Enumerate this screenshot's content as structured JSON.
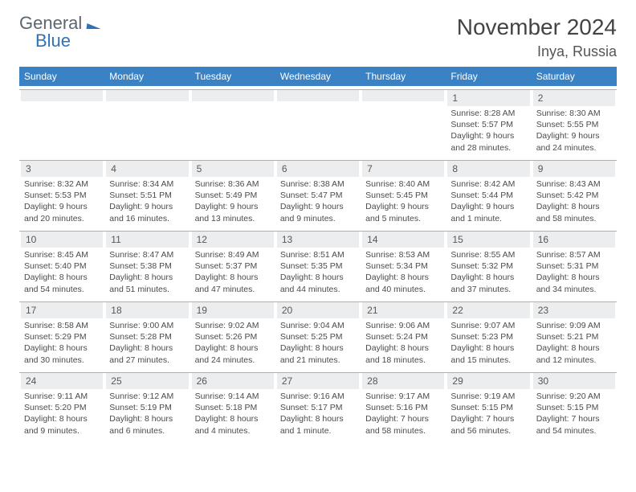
{
  "logo": {
    "text1": "General",
    "text2": "Blue"
  },
  "header": {
    "month_title": "November 2024",
    "location": "Inya, Russia"
  },
  "weekdays": [
    "Sunday",
    "Monday",
    "Tuesday",
    "Wednesday",
    "Thursday",
    "Friday",
    "Saturday"
  ],
  "colors": {
    "header_bg": "#3b82c4",
    "header_text": "#ffffff",
    "daynum_bg": "#ecedee",
    "border": "#a8b2bb",
    "logo_gray": "#5b6770",
    "logo_blue": "#2f72b8"
  },
  "days": [
    {
      "n": "",
      "sr": "",
      "ss": "",
      "dl1": "",
      "dl2": ""
    },
    {
      "n": "",
      "sr": "",
      "ss": "",
      "dl1": "",
      "dl2": ""
    },
    {
      "n": "",
      "sr": "",
      "ss": "",
      "dl1": "",
      "dl2": ""
    },
    {
      "n": "",
      "sr": "",
      "ss": "",
      "dl1": "",
      "dl2": ""
    },
    {
      "n": "",
      "sr": "",
      "ss": "",
      "dl1": "",
      "dl2": ""
    },
    {
      "n": "1",
      "sr": "Sunrise: 8:28 AM",
      "ss": "Sunset: 5:57 PM",
      "dl1": "Daylight: 9 hours",
      "dl2": "and 28 minutes."
    },
    {
      "n": "2",
      "sr": "Sunrise: 8:30 AM",
      "ss": "Sunset: 5:55 PM",
      "dl1": "Daylight: 9 hours",
      "dl2": "and 24 minutes."
    },
    {
      "n": "3",
      "sr": "Sunrise: 8:32 AM",
      "ss": "Sunset: 5:53 PM",
      "dl1": "Daylight: 9 hours",
      "dl2": "and 20 minutes."
    },
    {
      "n": "4",
      "sr": "Sunrise: 8:34 AM",
      "ss": "Sunset: 5:51 PM",
      "dl1": "Daylight: 9 hours",
      "dl2": "and 16 minutes."
    },
    {
      "n": "5",
      "sr": "Sunrise: 8:36 AM",
      "ss": "Sunset: 5:49 PM",
      "dl1": "Daylight: 9 hours",
      "dl2": "and 13 minutes."
    },
    {
      "n": "6",
      "sr": "Sunrise: 8:38 AM",
      "ss": "Sunset: 5:47 PM",
      "dl1": "Daylight: 9 hours",
      "dl2": "and 9 minutes."
    },
    {
      "n": "7",
      "sr": "Sunrise: 8:40 AM",
      "ss": "Sunset: 5:45 PM",
      "dl1": "Daylight: 9 hours",
      "dl2": "and 5 minutes."
    },
    {
      "n": "8",
      "sr": "Sunrise: 8:42 AM",
      "ss": "Sunset: 5:44 PM",
      "dl1": "Daylight: 9 hours",
      "dl2": "and 1 minute."
    },
    {
      "n": "9",
      "sr": "Sunrise: 8:43 AM",
      "ss": "Sunset: 5:42 PM",
      "dl1": "Daylight: 8 hours",
      "dl2": "and 58 minutes."
    },
    {
      "n": "10",
      "sr": "Sunrise: 8:45 AM",
      "ss": "Sunset: 5:40 PM",
      "dl1": "Daylight: 8 hours",
      "dl2": "and 54 minutes."
    },
    {
      "n": "11",
      "sr": "Sunrise: 8:47 AM",
      "ss": "Sunset: 5:38 PM",
      "dl1": "Daylight: 8 hours",
      "dl2": "and 51 minutes."
    },
    {
      "n": "12",
      "sr": "Sunrise: 8:49 AM",
      "ss": "Sunset: 5:37 PM",
      "dl1": "Daylight: 8 hours",
      "dl2": "and 47 minutes."
    },
    {
      "n": "13",
      "sr": "Sunrise: 8:51 AM",
      "ss": "Sunset: 5:35 PM",
      "dl1": "Daylight: 8 hours",
      "dl2": "and 44 minutes."
    },
    {
      "n": "14",
      "sr": "Sunrise: 8:53 AM",
      "ss": "Sunset: 5:34 PM",
      "dl1": "Daylight: 8 hours",
      "dl2": "and 40 minutes."
    },
    {
      "n": "15",
      "sr": "Sunrise: 8:55 AM",
      "ss": "Sunset: 5:32 PM",
      "dl1": "Daylight: 8 hours",
      "dl2": "and 37 minutes."
    },
    {
      "n": "16",
      "sr": "Sunrise: 8:57 AM",
      "ss": "Sunset: 5:31 PM",
      "dl1": "Daylight: 8 hours",
      "dl2": "and 34 minutes."
    },
    {
      "n": "17",
      "sr": "Sunrise: 8:58 AM",
      "ss": "Sunset: 5:29 PM",
      "dl1": "Daylight: 8 hours",
      "dl2": "and 30 minutes."
    },
    {
      "n": "18",
      "sr": "Sunrise: 9:00 AM",
      "ss": "Sunset: 5:28 PM",
      "dl1": "Daylight: 8 hours",
      "dl2": "and 27 minutes."
    },
    {
      "n": "19",
      "sr": "Sunrise: 9:02 AM",
      "ss": "Sunset: 5:26 PM",
      "dl1": "Daylight: 8 hours",
      "dl2": "and 24 minutes."
    },
    {
      "n": "20",
      "sr": "Sunrise: 9:04 AM",
      "ss": "Sunset: 5:25 PM",
      "dl1": "Daylight: 8 hours",
      "dl2": "and 21 minutes."
    },
    {
      "n": "21",
      "sr": "Sunrise: 9:06 AM",
      "ss": "Sunset: 5:24 PM",
      "dl1": "Daylight: 8 hours",
      "dl2": "and 18 minutes."
    },
    {
      "n": "22",
      "sr": "Sunrise: 9:07 AM",
      "ss": "Sunset: 5:23 PM",
      "dl1": "Daylight: 8 hours",
      "dl2": "and 15 minutes."
    },
    {
      "n": "23",
      "sr": "Sunrise: 9:09 AM",
      "ss": "Sunset: 5:21 PM",
      "dl1": "Daylight: 8 hours",
      "dl2": "and 12 minutes."
    },
    {
      "n": "24",
      "sr": "Sunrise: 9:11 AM",
      "ss": "Sunset: 5:20 PM",
      "dl1": "Daylight: 8 hours",
      "dl2": "and 9 minutes."
    },
    {
      "n": "25",
      "sr": "Sunrise: 9:12 AM",
      "ss": "Sunset: 5:19 PM",
      "dl1": "Daylight: 8 hours",
      "dl2": "and 6 minutes."
    },
    {
      "n": "26",
      "sr": "Sunrise: 9:14 AM",
      "ss": "Sunset: 5:18 PM",
      "dl1": "Daylight: 8 hours",
      "dl2": "and 4 minutes."
    },
    {
      "n": "27",
      "sr": "Sunrise: 9:16 AM",
      "ss": "Sunset: 5:17 PM",
      "dl1": "Daylight: 8 hours",
      "dl2": "and 1 minute."
    },
    {
      "n": "28",
      "sr": "Sunrise: 9:17 AM",
      "ss": "Sunset: 5:16 PM",
      "dl1": "Daylight: 7 hours",
      "dl2": "and 58 minutes."
    },
    {
      "n": "29",
      "sr": "Sunrise: 9:19 AM",
      "ss": "Sunset: 5:15 PM",
      "dl1": "Daylight: 7 hours",
      "dl2": "and 56 minutes."
    },
    {
      "n": "30",
      "sr": "Sunrise: 9:20 AM",
      "ss": "Sunset: 5:15 PM",
      "dl1": "Daylight: 7 hours",
      "dl2": "and 54 minutes."
    }
  ]
}
